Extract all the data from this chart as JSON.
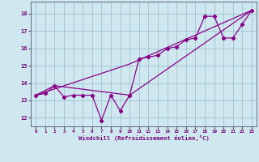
{
  "title": "",
  "xlabel": "Windchill (Refroidissement éolien,°C)",
  "ylabel": "",
  "bg_color": "#cfe8ef",
  "line_color": "#880088",
  "grid_color": "#99bbcc",
  "xlim": [
    -0.5,
    23.5
  ],
  "ylim": [
    11.5,
    18.7
  ],
  "yticks": [
    12,
    13,
    14,
    15,
    16,
    17,
    18
  ],
  "xticks": [
    0,
    1,
    2,
    3,
    4,
    5,
    6,
    7,
    8,
    9,
    10,
    11,
    12,
    13,
    14,
    15,
    16,
    17,
    18,
    19,
    20,
    21,
    22,
    23
  ],
  "line1_x": [
    0,
    1,
    2,
    3,
    4,
    5,
    6,
    7,
    8,
    9,
    10,
    11,
    12,
    13,
    14,
    15,
    16,
    17,
    18,
    19,
    20,
    21,
    22,
    23
  ],
  "line1_y": [
    13.3,
    13.4,
    13.85,
    13.2,
    13.3,
    13.3,
    13.3,
    11.85,
    13.3,
    12.4,
    13.3,
    15.4,
    15.5,
    15.6,
    16.0,
    16.1,
    16.5,
    16.6,
    17.85,
    17.85,
    16.6,
    16.6,
    17.4,
    18.2
  ],
  "line2_x": [
    0,
    2,
    10,
    23
  ],
  "line2_y": [
    13.3,
    13.85,
    13.3,
    18.2
  ],
  "line3_x": [
    0,
    10,
    23
  ],
  "line3_y": [
    13.3,
    15.1,
    18.2
  ]
}
